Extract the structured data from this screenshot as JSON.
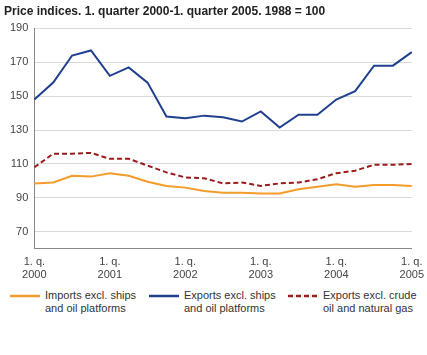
{
  "chart_data": {
    "type": "line",
    "title": "Price indices. 1. quarter 2000-1. quarter 2005. 1988 = 100",
    "categories": [
      "1. q. 2000",
      null,
      null,
      null,
      "1. q. 2001",
      null,
      null,
      null,
      "1. q. 2002",
      null,
      null,
      null,
      "1. q. 2003",
      null,
      null,
      null,
      "1. q. 2004",
      null,
      null,
      null,
      "1. q. 2005"
    ],
    "series": [
      {
        "name": "Imports excl. ships and oil platforms",
        "color": "#f39c2a",
        "line_style": "solid",
        "values": [
          98.5,
          99,
          103,
          102.5,
          104.5,
          103,
          99.5,
          97,
          96,
          94,
          93,
          93,
          92.5,
          92.5,
          95,
          96.5,
          98,
          96.5,
          97.5,
          97.5,
          97
        ]
      },
      {
        "name": "Exports excl. ships and oil platforms",
        "color": "#1f3f8f",
        "line_style": "solid",
        "values": [
          148,
          158,
          174,
          177,
          162,
          167,
          158,
          138,
          137,
          138.5,
          137.5,
          135,
          141,
          131.5,
          139,
          139,
          148,
          153,
          168,
          168,
          176
        ]
      },
      {
        "name": "Exports excl. crude oil and natural gas",
        "color": "#9b1c1c",
        "line_style": "dashed",
        "values": [
          108,
          116,
          116,
          116.5,
          113,
          113,
          109,
          105,
          102,
          101.5,
          98.5,
          99,
          97,
          98.5,
          99,
          101,
          104.5,
          106,
          109.5,
          109.5,
          110
        ]
      }
    ],
    "ylim": [
      60,
      190
    ],
    "yticks": [
      70,
      90,
      110,
      130,
      150,
      170,
      190
    ],
    "grid": true,
    "legend": "bottom",
    "marker": "none"
  }
}
